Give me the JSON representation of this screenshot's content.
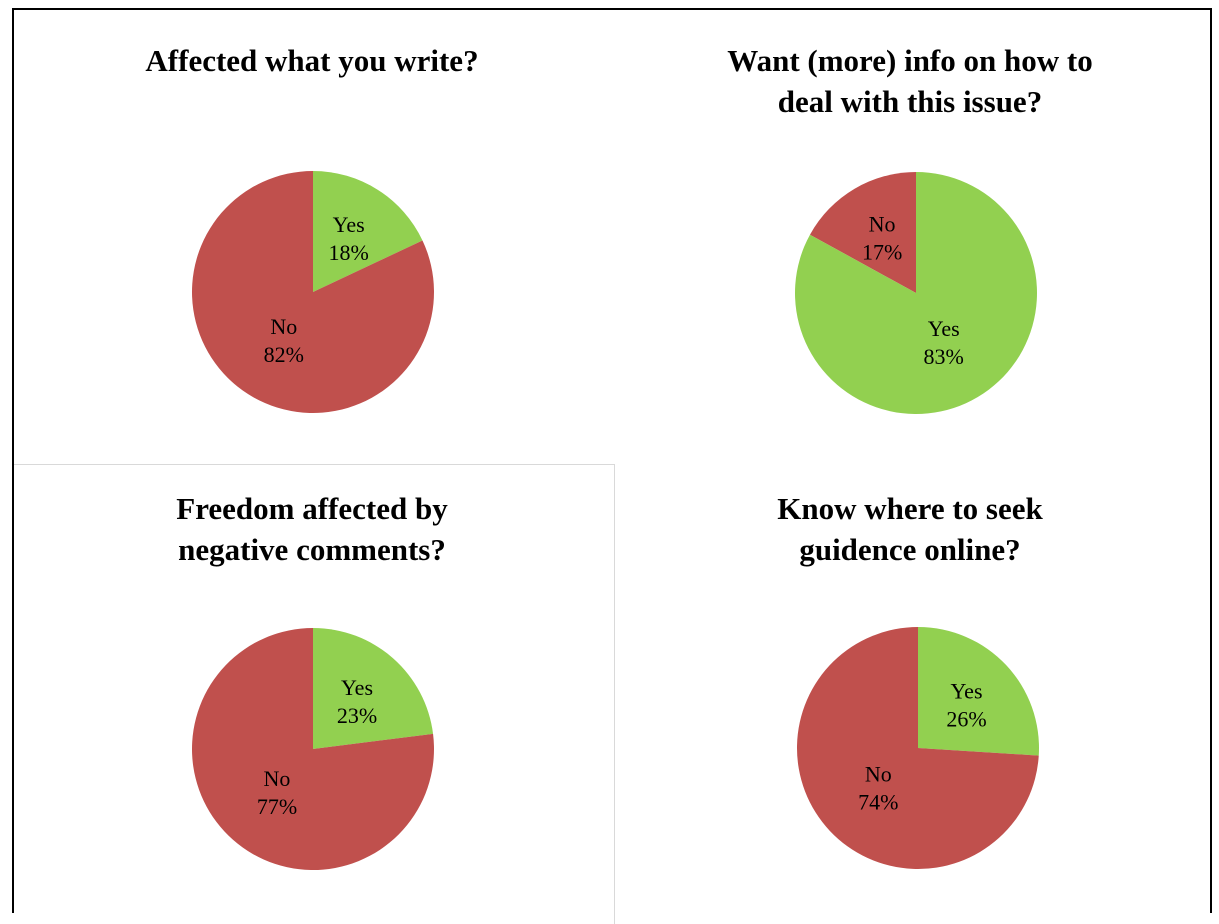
{
  "colors": {
    "yes": "#92d050",
    "no": "#c0504d"
  },
  "chart_data": [
    {
      "type": "pie",
      "title_lines": [
        "Affected what you write?"
      ],
      "slices": [
        {
          "label": "Yes",
          "value": 18,
          "pct_text": "18%",
          "color": "#92d050"
        },
        {
          "label": "No",
          "value": 82,
          "pct_text": "82%",
          "color": "#c0504d"
        }
      ]
    },
    {
      "type": "pie",
      "title_lines": [
        "Want (more) info on how to",
        "deal with this issue?"
      ],
      "slices": [
        {
          "label": "No",
          "value": 17,
          "pct_text": "17%",
          "color": "#c0504d"
        },
        {
          "label": "Yes",
          "value": 83,
          "pct_text": "83%",
          "color": "#92d050"
        }
      ],
      "start": "counterclockwise"
    },
    {
      "type": "pie",
      "title_lines": [
        "Freedom affected by",
        "negative comments?"
      ],
      "slices": [
        {
          "label": "Yes",
          "value": 23,
          "pct_text": "23%",
          "color": "#92d050"
        },
        {
          "label": "No",
          "value": 77,
          "pct_text": "77%",
          "color": "#c0504d"
        }
      ]
    },
    {
      "type": "pie",
      "title_lines": [
        "Know where to seek",
        "guidence online?"
      ],
      "slices": [
        {
          "label": "Yes",
          "value": 26,
          "pct_text": "26%",
          "color": "#92d050"
        },
        {
          "label": "No",
          "value": 74,
          "pct_text": "74%",
          "color": "#c0504d"
        }
      ]
    }
  ]
}
